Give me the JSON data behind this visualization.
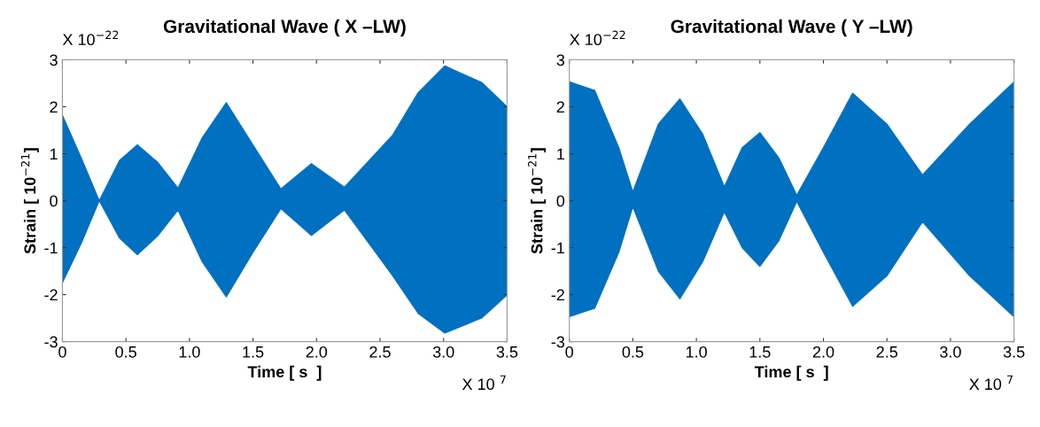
{
  "chart_data": [
    {
      "type": "area",
      "title": "Gravitational Wave ( X –LW)",
      "xlabel": "Time [ s  ]",
      "ylabel": "Strain [ 10$^{−21}$]",
      "annotations": [
        "X 10$^{−22}$",
        "X 10 $^{7}$"
      ],
      "x": [
        0,
        0.15,
        0.29,
        0.45,
        0.59,
        0.75,
        0.91,
        1.1,
        1.29,
        1.5,
        1.72,
        1.96,
        2.22,
        2.6,
        2.8,
        3.01,
        3.3,
        3.5
      ],
      "series": [
        {
          "color": "#0070c0",
          "values": [
            1.82,
            0.9,
            0,
            0.86,
            1.19,
            0.82,
            0.27,
            1.34,
            2.09,
            1.19,
            0.25,
            0.79,
            0.29,
            1.4,
            2.3,
            2.87,
            2.52,
            2.0
          ]
        },
        {
          "color": "#0070c0",
          "values": [
            -1.75,
            -0.9,
            0,
            -0.8,
            -1.15,
            -0.75,
            -0.2,
            -1.3,
            -2.05,
            -1.1,
            -0.17,
            -0.74,
            -0.2,
            -1.6,
            -2.4,
            -2.82,
            -2.5,
            -2.01
          ]
        }
      ],
      "xlim": [
        0,
        3.5
      ],
      "xticks": [
        0,
        0.5,
        {
          "value": 1,
          "label": "1.0"
        },
        1.5,
        {
          "value": 2,
          "label": "2.0"
        },
        2.5,
        {
          "value": 3,
          "label": "3.0"
        },
        3.5
      ],
      "ylim": [
        -3,
        3
      ],
      "yticks": [
        -3,
        -2,
        -1,
        0,
        1,
        2,
        3
      ]
    },
    {
      "type": "area",
      "title": "Gravitational Wave ( Y –LW)",
      "xlabel": "Time [ s  ]",
      "ylabel": "Strain [ 10$^{−21}$]",
      "annotations": [
        "X 10$^{−22}$",
        "X 10 $^{7}$"
      ],
      "x": [
        0,
        0.2,
        0.39,
        0.5,
        0.7,
        0.87,
        1.05,
        1.22,
        1.36,
        1.5,
        1.65,
        1.79,
        2.0,
        2.23,
        2.5,
        2.78,
        3.15,
        3.5
      ],
      "series": [
        {
          "color": "#0070c0",
          "values": [
            2.53,
            2.35,
            1.13,
            0.19,
            1.63,
            2.17,
            1.42,
            0.3,
            1.13,
            1.45,
            0.91,
            0.12,
            1.13,
            2.29,
            1.63,
            0.55,
            1.63,
            2.53
          ]
        },
        {
          "color": "#0070c0",
          "values": [
            -2.47,
            -2.29,
            -1.1,
            -0.13,
            -1.5,
            -2.09,
            -1.3,
            -0.24,
            -1.0,
            -1.4,
            -0.85,
            -0.02,
            -1.1,
            -2.25,
            -1.6,
            -0.45,
            -1.6,
            -2.47
          ]
        }
      ],
      "xlim": [
        0,
        3.5
      ],
      "xticks": [
        0,
        0.5,
        {
          "value": 1,
          "label": "1.0"
        },
        1.5,
        {
          "value": 2,
          "label": "2.0"
        },
        2.5,
        {
          "value": 3,
          "label": "3.0"
        },
        3.5
      ],
      "ylim": [
        -3,
        3
      ],
      "yticks": [
        -3,
        -2,
        -1,
        0,
        1,
        2,
        3
      ]
    }
  ]
}
